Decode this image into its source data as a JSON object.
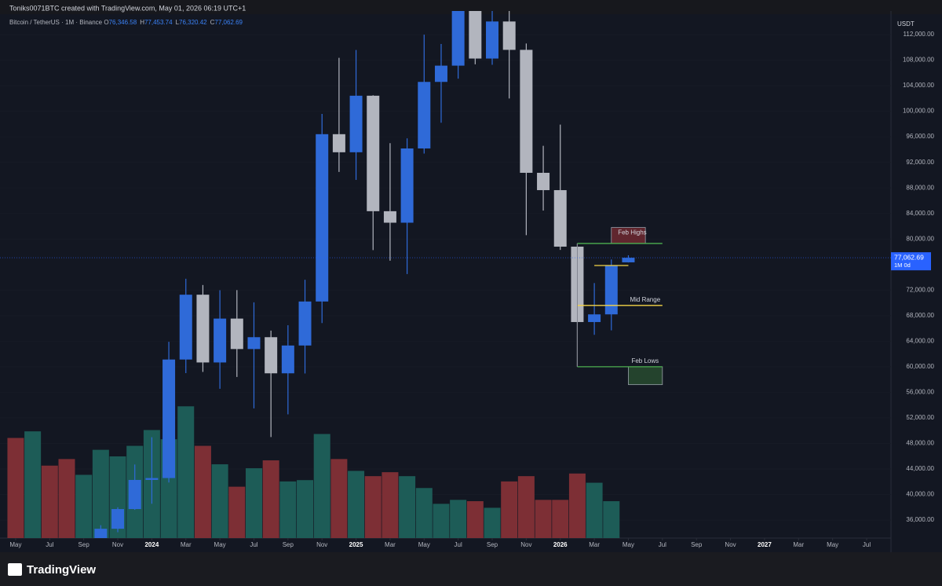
{
  "chart_data": {
    "type": "candlestick",
    "credit": "Toniks0071BTC created with TradingView.com, May 01, 2026 06:19 UTC+1",
    "symbol": "Bitcoin / TetherUS · 1M · Binance",
    "legend_ohlc": [
      {
        "key": "O",
        "text": "76,346.58"
      },
      {
        "key": "H",
        "text": "77,453.74"
      },
      {
        "key": "L",
        "text": "76,320.42"
      },
      {
        "key": "C",
        "text": "77,062.69"
      }
    ],
    "currency": "USDT",
    "last_price_label": "77,062.69",
    "countdown": "1M 0d",
    "brand": "TradingView",
    "up_color": "#2f6ad8",
    "down_color": "#b2b5be",
    "candles": {
      "x": [
        5,
        6,
        7,
        8,
        9,
        10,
        11,
        12,
        13,
        14,
        15,
        16,
        17,
        18,
        19,
        20,
        21,
        22,
        23,
        24,
        25,
        26,
        27,
        28,
        29,
        30,
        31,
        32,
        33,
        34,
        35,
        36
      ],
      "open": [
        26962,
        34640,
        37723,
        42284,
        42580,
        61131,
        71280,
        60672,
        67540,
        62772,
        64628,
        58973,
        63327,
        70215,
        96407,
        93576,
        102429,
        84350,
        82550,
        94172,
        104591,
        107135,
        115764,
        108246,
        114049,
        109608,
        90360,
        87648,
        78800,
        67000,
        68200,
        76346.58
      ],
      "high": [
        35198,
        38000,
        44700,
        48969,
        63913,
        73777,
        72797,
        71979,
        71997,
        70079,
        65660,
        66498,
        73620,
        99588,
        108353,
        109588,
        102500,
        95000,
        95758,
        111980,
        110530,
        123218,
        124474,
        117900,
        126200,
        110600,
        94588,
        97900,
        79300,
        73100,
        76800,
        77453.74
      ],
      "low": [
        26538,
        34097,
        37600,
        38555,
        41884,
        59005,
        59191,
        56552,
        58402,
        53485,
        49000,
        52550,
        58946,
        66835,
        90500,
        89256,
        78258,
        76606,
        74508,
        93377,
        98200,
        105100,
        107350,
        107270,
        102000,
        80600,
        84450,
        78300,
        60000,
        65000,
        65700,
        76320.42
      ],
      "close": [
        34640,
        37723,
        42284,
        42580,
        61131,
        71280,
        60672,
        67540,
        62772,
        64628,
        58973,
        63327,
        70215,
        96407,
        93576,
        102429,
        84350,
        82550,
        94172,
        104591,
        107135,
        115764,
        108246,
        114049,
        109608,
        90360,
        87648,
        78800,
        67000,
        68200,
        75850,
        77062.69
      ]
    },
    "volume": {
      "x": [
        0,
        1,
        2,
        3,
        4,
        5,
        6,
        7,
        8,
        9,
        10,
        11,
        12,
        13,
        14,
        15,
        16,
        17,
        18,
        19,
        20,
        21,
        22,
        23,
        24,
        25,
        26,
        27,
        28,
        29,
        30,
        31,
        32,
        33,
        34,
        35
      ],
      "values": [
        76,
        81,
        55,
        60,
        48,
        67,
        62,
        70,
        82,
        75,
        100,
        70,
        56,
        39,
        53,
        59,
        43,
        44,
        79,
        60,
        51,
        47,
        50,
        47,
        38,
        26,
        29,
        28,
        23,
        43,
        47,
        29,
        29,
        49,
        42,
        28
      ],
      "colors": [
        "#7d2f35",
        "#1d5c57",
        "#7d2f35",
        "#7d2f35",
        "#1d5c57",
        "#1d5c57",
        "#1d5c57",
        "#1d5c57",
        "#1d5c57",
        "#1d5c57",
        "#1d5c57",
        "#7d2f35",
        "#1d5c57",
        "#7d2f35",
        "#1d5c57",
        "#7d2f35",
        "#1d5c57",
        "#1d5c57",
        "#1d5c57",
        "#7d2f35",
        "#1d5c57",
        "#7d2f35",
        "#7d2f35",
        "#1d5c57",
        "#1d5c57",
        "#1d5c57",
        "#1d5c57",
        "#7d2f35",
        "#1d5c57",
        "#7d2f35",
        "#7d2f35",
        "#7d2f35",
        "#7d2f35",
        "#7d2f35",
        "#1d5c57",
        "#1d5c57"
      ],
      "vlim": [
        0,
        400
      ]
    },
    "xlim": [
      -0.92,
      51.43
    ],
    "xticks": [
      {
        "value": 0,
        "label": "May"
      },
      {
        "value": 2,
        "label": "Jul"
      },
      {
        "value": 4,
        "label": "Sep"
      },
      {
        "value": 6,
        "label": "Nov"
      },
      {
        "value": 8,
        "label": "2024"
      },
      {
        "value": 10,
        "label": "Mar"
      },
      {
        "value": 12,
        "label": "May"
      },
      {
        "value": 14,
        "label": "Jul"
      },
      {
        "value": 16,
        "label": "Sep"
      },
      {
        "value": 18,
        "label": "Nov"
      },
      {
        "value": 20,
        "label": "2025"
      },
      {
        "value": 22,
        "label": "Mar"
      },
      {
        "value": 24,
        "label": "May"
      },
      {
        "value": 26,
        "label": "Jul"
      },
      {
        "value": 28,
        "label": "Sep"
      },
      {
        "value": 30,
        "label": "Nov"
      },
      {
        "value": 32,
        "label": "2026"
      },
      {
        "value": 34,
        "label": "Mar"
      },
      {
        "value": 36,
        "label": "May"
      },
      {
        "value": 38,
        "label": "Jul"
      },
      {
        "value": 40,
        "label": "Sep"
      },
      {
        "value": 42,
        "label": "Nov"
      },
      {
        "value": 44,
        "label": "2027"
      },
      {
        "value": 46,
        "label": "Mar"
      },
      {
        "value": 48,
        "label": "May"
      },
      {
        "value": 50,
        "label": "Jul"
      }
    ],
    "ylim": [
      33180,
      115690
    ],
    "yticks": [
      {
        "value": 112000,
        "label": "112,000.00"
      },
      {
        "value": 108000,
        "label": "108,000.00"
      },
      {
        "value": 104000,
        "label": "104,000.00"
      },
      {
        "value": 100000,
        "label": "100,000.00"
      },
      {
        "value": 96000,
        "label": "96,000.00"
      },
      {
        "value": 92000,
        "label": "92,000.00"
      },
      {
        "value": 88000,
        "label": "88,000.00"
      },
      {
        "value": 84000,
        "label": "84,000.00"
      },
      {
        "value": 80000,
        "label": "80,000.00"
      },
      {
        "value": 72000,
        "label": "72,000.00"
      },
      {
        "value": 68000,
        "label": "68,000.00"
      },
      {
        "value": 64000,
        "label": "64,000.00"
      },
      {
        "value": 60000,
        "label": "60,000.00"
      },
      {
        "value": 56000,
        "label": "56,000.00"
      },
      {
        "value": 52000,
        "label": "52,000.00"
      },
      {
        "value": 48000,
        "label": "48,000.00"
      },
      {
        "value": 44000,
        "label": "44,000.00"
      },
      {
        "value": 40000,
        "label": "40,000.00"
      },
      {
        "value": 36000,
        "label": "36,000.00"
      }
    ],
    "annotations": [
      {
        "text": "Feb Highs",
        "line": {
          "x": [
            33,
            38
          ],
          "y": 79300,
          "color": "#4caf50"
        },
        "box": {
          "x": [
            35,
            37
          ],
          "y": [
            79300,
            81800
          ],
          "color": "#8b2e36"
        }
      },
      {
        "text": "Mid Range",
        "line": {
          "x": [
            33,
            38
          ],
          "y": 69600,
          "color": "#f5d547"
        }
      },
      {
        "text": "Feb Lows",
        "line": {
          "x": [
            33,
            38
          ],
          "y": 60000,
          "color": "#4caf50"
        },
        "box": {
          "x": [
            36,
            38
          ],
          "y": [
            57200,
            60000
          ],
          "color": "#2e5a34"
        }
      },
      {
        "line": {
          "x": [
            34,
            36
          ],
          "y": 75850,
          "color": "#f5d547"
        }
      }
    ]
  }
}
